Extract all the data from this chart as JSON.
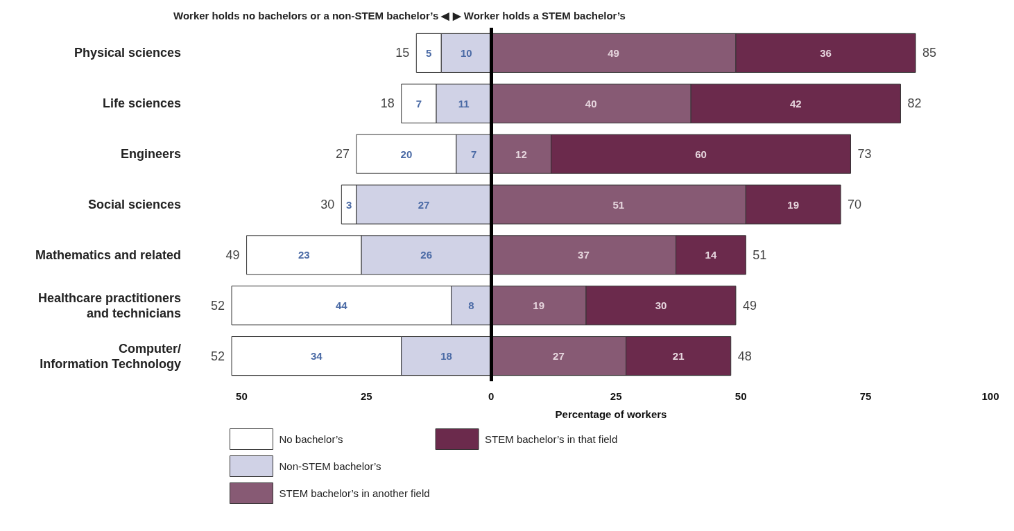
{
  "chart_data": {
    "type": "bar",
    "orientation": "horizontal",
    "title": "Worker holds no bachelors or a non-STEM bachelor’s ◀ ▶ Worker holds a STEM bachelor’s",
    "xlabel": "Percentage of workers",
    "categories": [
      "Physical sciences",
      "Life sciences",
      "Engineers",
      "Social sciences",
      "Mathematics and related",
      "Healthcare practitioners\nand technicians",
      "Computer/\nInformation Technology"
    ],
    "series": [
      {
        "name": "No bachelor’s",
        "color": "#ffffff",
        "values": [
          5,
          7,
          20,
          3,
          23,
          44,
          34
        ],
        "base": [
          -15,
          -18,
          -27,
          -30,
          -49,
          -52,
          -52
        ]
      },
      {
        "name": "Non-STEM bachelor’s",
        "color": "#d0d2e6",
        "values": [
          10,
          11,
          7,
          27,
          26,
          8,
          18
        ],
        "base": [
          -10,
          -11,
          -7,
          -27,
          -26,
          -8,
          -18
        ]
      },
      {
        "name": "STEM bachelor’s in another field",
        "color": "#875a74",
        "values": [
          49,
          40,
          12,
          51,
          37,
          19,
          27
        ],
        "base": [
          0,
          0,
          0,
          0,
          0,
          0,
          0
        ]
      },
      {
        "name": "STEM bachelor’s in that field",
        "color": "#6b2a4c",
        "values": [
          36,
          42,
          60,
          19,
          14,
          30,
          21
        ],
        "base": [
          49,
          40,
          12,
          51,
          37,
          19,
          27
        ]
      }
    ],
    "data_labels": true,
    "xlim": [
      -52,
      100
    ],
    "xticks": [
      {
        "value": -50,
        "label": "50"
      },
      {
        "value": -25,
        "label": "25"
      },
      0,
      25,
      50,
      75,
      100
    ],
    "ref_lines": [
      {
        "axis": "x",
        "value": 0,
        "color": "#000000"
      }
    ],
    "annotations": [
      {
        "text": "15",
        "x": -15,
        "y": "Physical sciences"
      },
      {
        "text": "85",
        "x": 85,
        "y": "Physical sciences"
      },
      {
        "text": "18",
        "x": -18,
        "y": "Life sciences"
      },
      {
        "text": "82",
        "x": 82,
        "y": "Life sciences"
      },
      {
        "text": "27",
        "x": -27,
        "y": "Engineers"
      },
      {
        "text": "73",
        "x": 72,
        "y": "Engineers"
      },
      {
        "text": "30",
        "x": -30,
        "y": "Social sciences"
      },
      {
        "text": "70",
        "x": 70,
        "y": "Social sciences"
      },
      {
        "text": "49",
        "x": -49,
        "y": "Mathematics and related"
      },
      {
        "text": "51",
        "x": 51,
        "y": "Mathematics and related"
      },
      {
        "text": "52",
        "x": -52,
        "y": "Healthcare practitioners\nand technicians"
      },
      {
        "text": "49",
        "x": 49,
        "y": "Healthcare practitioners\nand technicians"
      },
      {
        "text": "52",
        "x": -52,
        "y": "Computer/\nInformation Technology"
      },
      {
        "text": "48",
        "x": 48,
        "y": "Computer/\nInformation Technology"
      }
    ],
    "legend": "bottom left",
    "grid": false
  }
}
